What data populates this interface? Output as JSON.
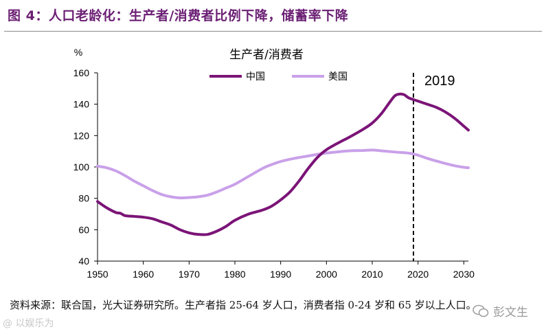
{
  "figure_title": "图 4：人口老龄化：生产者/消费者比例下降，储蓄率下降",
  "source_note": "资料来源：联合国，光大证券研究所。生产者指 25-64 岁人口，消费者指 0-24 岁和 65 岁以上人口。",
  "watermark_left": "@ 以娱乐为",
  "watermark_right": "彭文生",
  "colors": {
    "china": "#7b1477",
    "usa": "#c9a0e9",
    "title": "#6b1f73",
    "marker": "#000000"
  },
  "chart_data": {
    "type": "line",
    "title": "生产者/消费者",
    "ylabel": "%",
    "xlabel": "",
    "xlim": [
      1950,
      2031
    ],
    "ylim": [
      40,
      160
    ],
    "xticks": [
      1950,
      1960,
      1970,
      1980,
      1990,
      2000,
      2010,
      2020,
      2030
    ],
    "yticks": [
      40,
      60,
      80,
      100,
      120,
      140,
      160
    ],
    "legend": "top-center",
    "vline": {
      "x": 2019,
      "label": "2019"
    },
    "series": [
      {
        "name": "中国",
        "x": [
          1950,
          1952,
          1954,
          1955,
          1956,
          1958,
          1960,
          1962,
          1964,
          1966,
          1968,
          1970,
          1972,
          1974,
          1976,
          1978,
          1980,
          1983,
          1986,
          1988,
          1990,
          1992,
          1994,
          1996,
          1998,
          2000,
          2003,
          2005,
          2008,
          2010,
          2012,
          2014,
          2015,
          2016,
          2017,
          2018,
          2020,
          2022,
          2024,
          2026,
          2028,
          2030,
          2031
        ],
        "values": [
          78,
          74,
          71,
          70.5,
          69,
          68.5,
          68,
          67,
          65,
          63,
          60,
          58,
          57,
          57,
          59,
          62,
          66,
          70,
          72.5,
          75,
          79,
          84,
          91,
          99,
          106,
          111,
          116,
          119,
          124,
          128,
          134,
          142,
          145.5,
          146.5,
          146,
          144,
          142,
          140,
          138,
          135,
          131,
          126,
          123.5
        ]
      },
      {
        "name": "美国",
        "x": [
          1950,
          1952,
          1954,
          1956,
          1958,
          1960,
          1962,
          1964,
          1966,
          1968,
          1970,
          1972,
          1974,
          1976,
          1978,
          1980,
          1983,
          1986,
          1988,
          1990,
          1993,
          1996,
          1999,
          2002,
          2005,
          2008,
          2010,
          2012,
          2015,
          2018,
          2020,
          2022,
          2025,
          2028,
          2030,
          2031
        ],
        "values": [
          100.5,
          99.5,
          97.5,
          94.5,
          91,
          88,
          85,
          82.5,
          81,
          80.3,
          80.5,
          81,
          82,
          84,
          86.5,
          89,
          94,
          99,
          101.5,
          103.5,
          105.5,
          107,
          108.5,
          109.5,
          110.3,
          110.5,
          110.8,
          110.3,
          109.5,
          108.8,
          107.5,
          105.5,
          103,
          100.8,
          99.8,
          99.5
        ]
      }
    ]
  }
}
